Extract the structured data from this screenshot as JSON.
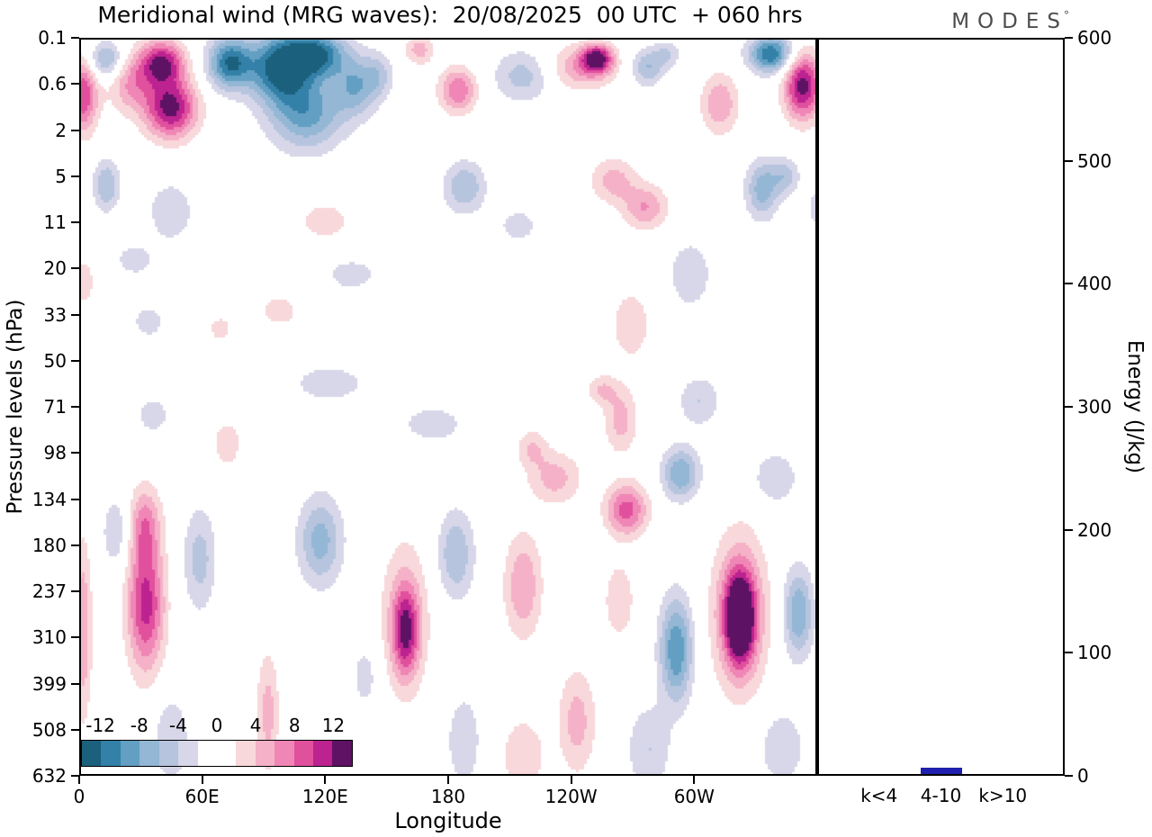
{
  "chart_data": {
    "type": "contour",
    "title": "Meridional wind (MRG waves):  20/08/2025  00 UTC  + 060 hrs",
    "logo": "MODES",
    "logo_sup": "°",
    "xlabel": "Longitude",
    "ylabel": "Pressure levels (hPa)",
    "x_tick_labels": [
      "0",
      "60E",
      "120E",
      "180",
      "120W",
      "60W"
    ],
    "x_tick_degrees": [
      0,
      60,
      120,
      180,
      240,
      300
    ],
    "x_range_degrees": [
      0,
      360
    ],
    "y_tick_labels": [
      "0.1",
      "0.6",
      "2",
      "5",
      "11",
      "20",
      "33",
      "50",
      "71",
      "98",
      "134",
      "180",
      "237",
      "310",
      "399",
      "508",
      "632"
    ],
    "colorbar": {
      "tick_labels": [
        "-12",
        "-8",
        "-4",
        "0",
        "4",
        "8",
        "12"
      ],
      "tick_values": [
        -12,
        -8,
        -4,
        0,
        4,
        8,
        12
      ],
      "range": [
        -14,
        14
      ],
      "colors": [
        "#1b607c",
        "#3380a8",
        "#629fc2",
        "#93b7d4",
        "#b6c4de",
        "#d7d7e9",
        "#ffffff",
        "#ffffff",
        "#f8d8da",
        "#f5b1c7",
        "#ef86b5",
        "#e0509c",
        "#bc2290",
        "#5e1263"
      ]
    },
    "field_features_format": "[x_frac, y_frac, rx_frac, ry_frac, amplitude_m_per_s]",
    "field_features": [
      [
        0.005,
        0.077,
        0.02,
        0.05,
        10
      ],
      [
        0.037,
        0.03,
        0.025,
        0.025,
        -7
      ],
      [
        0.07,
        0.06,
        0.03,
        0.04,
        6
      ],
      [
        0.112,
        0.034,
        0.03,
        0.03,
        12
      ],
      [
        0.124,
        0.095,
        0.035,
        0.04,
        13
      ],
      [
        0.204,
        0.034,
        0.03,
        0.035,
        -12
      ],
      [
        0.271,
        0.04,
        0.04,
        0.045,
        -13
      ],
      [
        0.32,
        0.022,
        0.04,
        0.03,
        -12
      ],
      [
        0.307,
        0.101,
        0.05,
        0.05,
        -9
      ],
      [
        0.374,
        0.065,
        0.03,
        0.04,
        -7
      ],
      [
        0.405,
        0.05,
        0.02,
        0.03,
        -4
      ],
      [
        0.46,
        0.016,
        0.02,
        0.02,
        5
      ],
      [
        0.512,
        0.071,
        0.025,
        0.03,
        8
      ],
      [
        0.6,
        0.052,
        0.04,
        0.035,
        -5
      ],
      [
        0.68,
        0.04,
        0.045,
        0.03,
        6
      ],
      [
        0.7,
        0.028,
        0.02,
        0.018,
        12
      ],
      [
        0.768,
        0.04,
        0.022,
        0.025,
        -6
      ],
      [
        0.795,
        0.022,
        0.018,
        0.018,
        -4
      ],
      [
        0.866,
        0.089,
        0.025,
        0.04,
        6
      ],
      [
        0.935,
        0.022,
        0.03,
        0.025,
        -12
      ],
      [
        0.978,
        0.065,
        0.025,
        0.045,
        13
      ],
      [
        0.037,
        0.199,
        0.018,
        0.035,
        -6
      ],
      [
        0.124,
        0.235,
        0.03,
        0.04,
        -4
      ],
      [
        0.332,
        0.248,
        0.04,
        0.03,
        3
      ],
      [
        0.521,
        0.202,
        0.028,
        0.035,
        -6
      ],
      [
        0.594,
        0.254,
        0.03,
        0.025,
        -3
      ],
      [
        0.722,
        0.193,
        0.03,
        0.03,
        5
      ],
      [
        0.765,
        0.229,
        0.03,
        0.03,
        6
      ],
      [
        0.923,
        0.205,
        0.022,
        0.04,
        -7
      ],
      [
        0.954,
        0.187,
        0.02,
        0.025,
        -5
      ],
      [
        1.0,
        0.23,
        0.015,
        0.025,
        -4
      ],
      [
        0.005,
        0.33,
        0.015,
        0.03,
        4
      ],
      [
        0.075,
        0.3,
        0.03,
        0.025,
        -3
      ],
      [
        0.271,
        0.369,
        0.03,
        0.025,
        3
      ],
      [
        0.368,
        0.32,
        0.04,
        0.025,
        -3
      ],
      [
        0.746,
        0.388,
        0.025,
        0.045,
        4
      ],
      [
        0.826,
        0.32,
        0.028,
        0.045,
        -4
      ],
      [
        0.094,
        0.384,
        0.025,
        0.025,
        -3
      ],
      [
        0.191,
        0.394,
        0.018,
        0.02,
        3
      ],
      [
        0.338,
        0.467,
        0.06,
        0.03,
        -3
      ],
      [
        0.706,
        0.476,
        0.02,
        0.02,
        4
      ],
      [
        0.1,
        0.51,
        0.025,
        0.03,
        -3
      ],
      [
        0.2,
        0.549,
        0.018,
        0.03,
        4
      ],
      [
        0.478,
        0.522,
        0.05,
        0.03,
        -3
      ],
      [
        0.612,
        0.555,
        0.02,
        0.025,
        4
      ],
      [
        0.732,
        0.516,
        0.022,
        0.045,
        5
      ],
      [
        0.838,
        0.491,
        0.028,
        0.035,
        -4
      ],
      [
        0.643,
        0.595,
        0.035,
        0.035,
        5
      ],
      [
        0.813,
        0.589,
        0.025,
        0.035,
        -8
      ],
      [
        0.74,
        0.638,
        0.028,
        0.035,
        9
      ],
      [
        0.941,
        0.595,
        0.03,
        0.035,
        -4
      ],
      [
        0.005,
        0.8,
        0.012,
        0.12,
        6
      ],
      [
        0.051,
        0.668,
        0.02,
        0.05,
        -4
      ],
      [
        0.088,
        0.656,
        0.022,
        0.05,
        6
      ],
      [
        0.09,
        0.766,
        0.025,
        0.09,
        11
      ],
      [
        0.163,
        0.705,
        0.022,
        0.07,
        -5
      ],
      [
        0.124,
        0.949,
        0.025,
        0.06,
        -4
      ],
      [
        0.255,
        0.912,
        0.015,
        0.08,
        5
      ],
      [
        0.326,
        0.68,
        0.03,
        0.06,
        -7
      ],
      [
        0.387,
        0.863,
        0.02,
        0.05,
        -3
      ],
      [
        0.441,
        0.802,
        0.018,
        0.06,
        10
      ],
      [
        0.441,
        0.78,
        0.035,
        0.11,
        4
      ],
      [
        0.509,
        0.699,
        0.025,
        0.06,
        -6
      ],
      [
        0.52,
        0.95,
        0.03,
        0.08,
        -3
      ],
      [
        0.6,
        0.741,
        0.025,
        0.07,
        6
      ],
      [
        0.6,
        0.97,
        0.03,
        0.05,
        4
      ],
      [
        0.673,
        0.924,
        0.025,
        0.07,
        5
      ],
      [
        0.73,
        0.76,
        0.02,
        0.05,
        4
      ],
      [
        0.807,
        0.827,
        0.022,
        0.07,
        -10
      ],
      [
        0.893,
        0.778,
        0.035,
        0.1,
        9
      ],
      [
        0.893,
        0.785,
        0.018,
        0.055,
        14
      ],
      [
        0.972,
        0.778,
        0.02,
        0.06,
        -8
      ],
      [
        0.95,
        0.96,
        0.03,
        0.05,
        -4
      ],
      [
        0.77,
        0.961,
        0.03,
        0.06,
        -4
      ]
    ],
    "energy_panel": {
      "ylabel": "Energy (J/kg)",
      "y_ticks": [
        0,
        100,
        200,
        300,
        400,
        500,
        600
      ],
      "y_range": [
        0,
        600
      ],
      "categories": [
        "k<4",
        "4-10",
        "k>10"
      ],
      "values": [
        0,
        5,
        0
      ],
      "bar_color": "#2020b0"
    }
  }
}
